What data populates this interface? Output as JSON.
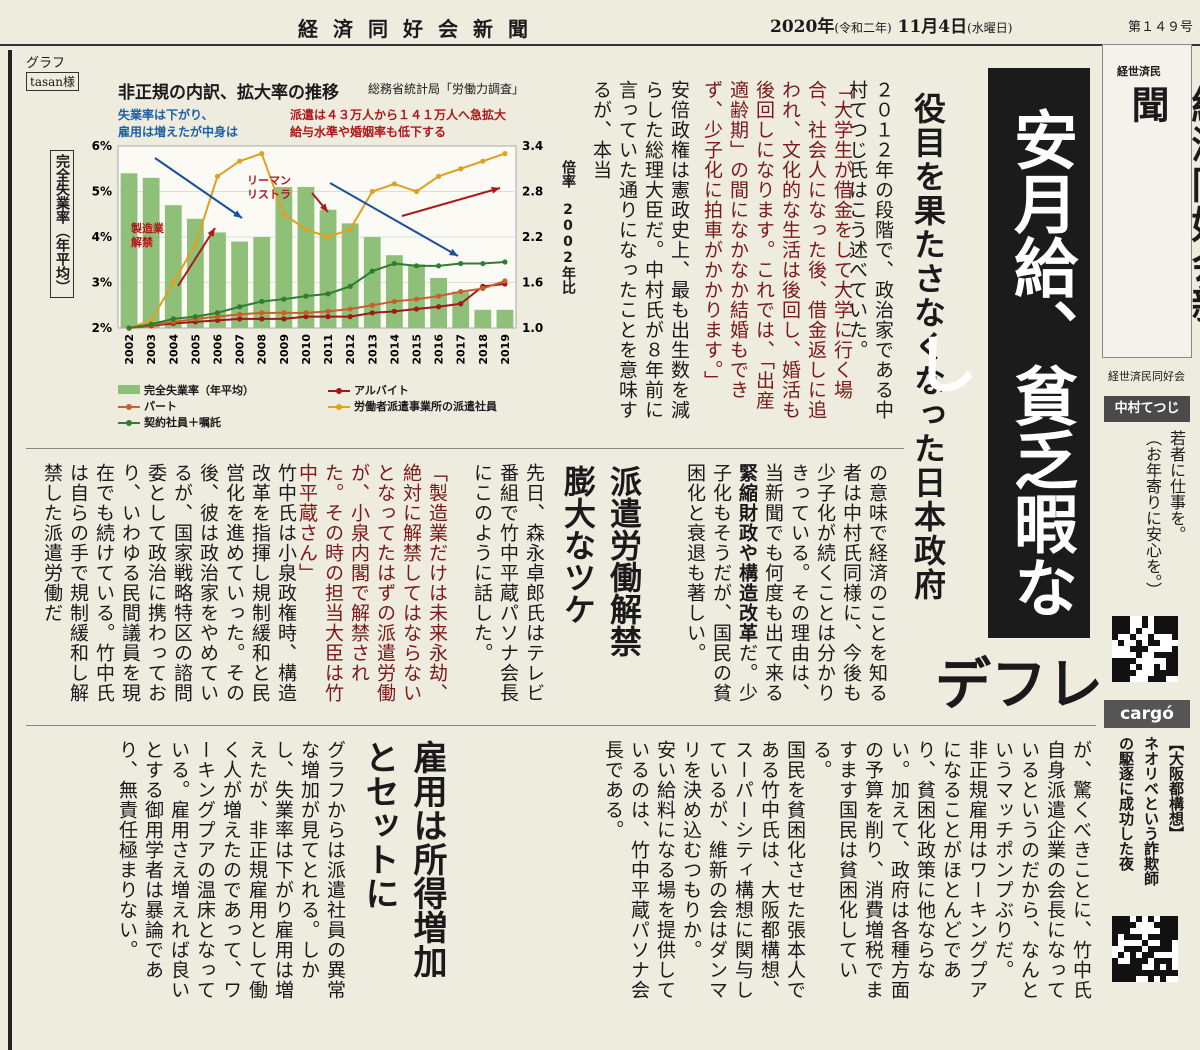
{
  "header": {
    "masthead": "経済同好会新聞",
    "date_main": "2020年",
    "date_era": "(令和二年)",
    "date_day": "11月4日",
    "date_weekday": "(水曜日)",
    "issue": "第１４９号"
  },
  "graph_box": {
    "label": "グラフ",
    "credit": "tasan様"
  },
  "chart_data": {
    "type": "bar",
    "title": "非正規の内訳、拡大率の推移",
    "source": "総務省統計局「労働力調査」",
    "annotation_left": "失業率は下がり、\n雇用は増えたが中身は",
    "annotation_right": "派遣は４３万人から１４１万人へ急拡大\n給与水準や婚姻率も低下する",
    "label_manufacturing": "製造業\n解禁",
    "label_lehman": "リーマン\nリストラ",
    "ylabel_left": "完全失業率（年平均）",
    "ylabel_right": "倍率　2002年比",
    "yticks_left": [
      "6%",
      "5%",
      "4%",
      "3%",
      "2%"
    ],
    "yticks_right": [
      "3.4",
      "2.8",
      "2.2",
      "1.6",
      "1.0"
    ],
    "ylim_left": [
      2,
      6
    ],
    "ylim_right": [
      1.0,
      3.4
    ],
    "categories": [
      "2002",
      "2003",
      "2004",
      "2005",
      "2006",
      "2007",
      "2008",
      "2009",
      "2010",
      "2011",
      "2012",
      "2013",
      "2014",
      "2015",
      "2016",
      "2017",
      "2018",
      "2019"
    ],
    "bars": {
      "name": "完全失業率（年平均）",
      "color": "#8fc07a",
      "values": [
        5.4,
        5.3,
        4.7,
        4.4,
        4.1,
        3.9,
        4.0,
        5.1,
        5.1,
        4.6,
        4.3,
        4.0,
        3.6,
        3.4,
        3.1,
        2.8,
        2.4,
        2.4
      ]
    },
    "series": [
      {
        "name": "アルバイト",
        "color": "#a01818",
        "values": [
          1.0,
          1.03,
          1.06,
          1.08,
          1.1,
          1.12,
          1.12,
          1.12,
          1.15,
          1.15,
          1.15,
          1.2,
          1.22,
          1.25,
          1.28,
          1.32,
          1.55,
          1.58
        ]
      },
      {
        "name": "パート",
        "color": "#c8602a",
        "values": [
          1.0,
          1.04,
          1.08,
          1.12,
          1.15,
          1.18,
          1.2,
          1.2,
          1.2,
          1.22,
          1.25,
          1.3,
          1.35,
          1.38,
          1.42,
          1.48,
          1.52,
          1.62
        ]
      },
      {
        "name": "労働者派遣事業所の派遣社員",
        "color": "#e0a020",
        "values": [
          1.0,
          1.1,
          1.6,
          2.1,
          3.0,
          3.2,
          3.3,
          2.5,
          2.3,
          2.2,
          2.3,
          2.8,
          2.9,
          2.8,
          3.0,
          3.1,
          3.2,
          3.3
        ]
      },
      {
        "name": "契約社員＋嘱託",
        "color": "#2e7d32",
        "values": [
          1.0,
          1.05,
          1.12,
          1.15,
          1.2,
          1.28,
          1.35,
          1.38,
          1.42,
          1.45,
          1.55,
          1.75,
          1.85,
          1.82,
          1.82,
          1.85,
          1.85,
          1.87
        ]
      }
    ]
  },
  "article1": {
    "headline": "役目を果たさなくなった日本政府",
    "big_headline": "安月給、貧乏暇なし",
    "kicker": "デフレ",
    "col_a": "２０１２年の段階で、政治家である中村てつじ氏はこう述べていた。",
    "quote": "「大学生が借金をして大学に行く場合、社会人になった後、借金返しに追われ、文化的な生活は後回し、婚活も後回しになります。これでは、「出産適齢期」の間になかなか結婚もできず、少子化に拍車がかかります。」",
    "col_b": "安倍政権は憲政史上、最も出生数を減らした総理大臣だ。中村氏が８年前に言っていた通りになったことを意味するが、本当",
    "col_c": "の意味で経済のことを知る者は中村氏同様に、今後も少子化が続くことは分かりきっている。その理由は、当新聞でも何度も出て来る",
    "col_c_bold": "緊縮財政や構造改革",
    "col_c2": "だ。少子化もそうだが、国民の貧困化と衰退も著しい。"
  },
  "article2": {
    "headline": "派遣労働解禁\n膨大なツケ",
    "text1": "先日、森永卓郎氏はテレビ番組で竹中平蔵パソナ会長にこのように話した。",
    "quote": "「製造業だけは未来永劫、絶対に解禁してはならないとなってたはずの派遣労働が、小泉内閣で解禁された。その時の担当大臣は竹中平蔵さん」",
    "text2": "竹中氏は小泉政権時、構造改革を指揮し規制緩和と民営化を進めていった。その後、彼は政治家をやめているが、国家戦略特区の諮問委として政治に携わっており、いわゆる民間議員を現在でも続けている。竹中氏は自らの手で規制緩和し解禁した派遣労働だ"
  },
  "article3": {
    "text1": "が、驚くべきことに、竹中氏自身派遣企業の会長になっているというのだから、なんというマッチポンプぶりだ。\n非正規雇用はワーキングプアになることがほとんどであり、貧困化政策に他ならない。加えて、政府は各種方面の予算を削り、消費増税でますます国民は貧困化している。\n国民を貧困化させた張本人である竹中氏は、大阪都構想、スーパーシティ構想に関与しているが、維新の会はダンマリを決め込むつもりか。\n安い給料になる場を提供しているのは、竹中平蔵パソナ会長である。"
  },
  "article4": {
    "headline": "雇用は所得増加\nとセットに",
    "text": "グラフからは派遣社員の異常な増加が見てとれる。しかし、失業率は下がり雇用は増えたが、非正規雇用として働く人が増えたのであって、ワーキングプアの温床となっている。雇用さえ増えれば良いとする御用学者は暴論であり、無責任極まりない。"
  },
  "sidebar": {
    "logo_small": "経世済民",
    "logo_big": "経済同好会新聞",
    "org": "経世済民同好会",
    "author_label": "中村てつじ",
    "author_text": "若者に仕事を。\n（お年寄りに安心を。）",
    "brand": "cargó",
    "book_text": "【大阪都構想】\nネオリベという詐欺師\nの駆逐に成功した夜"
  }
}
